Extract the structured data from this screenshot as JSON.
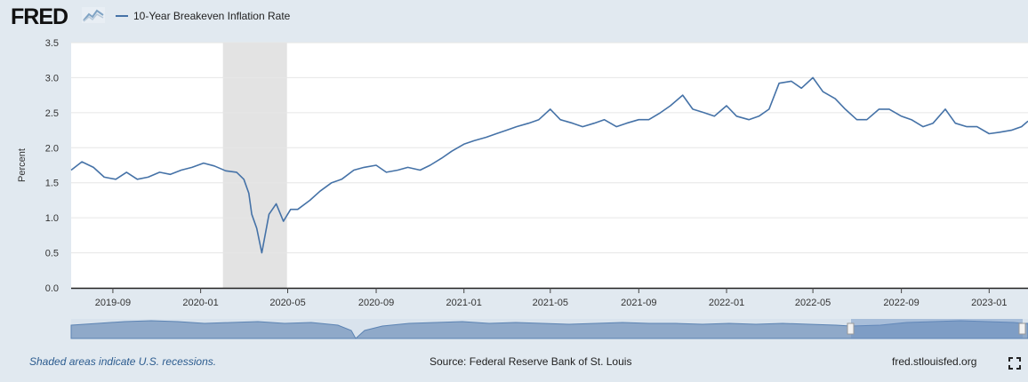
{
  "header": {
    "logo_text": "FRED",
    "series_label": "10-Year Breakeven Inflation Rate"
  },
  "footer": {
    "recession_note": "Shaded areas indicate U.S. recessions.",
    "source": "Source: Federal Reserve Bank of St. Louis",
    "site": "fred.stlouisfed.org"
  },
  "colors": {
    "line": "#4572a7",
    "plot_bg": "#ffffff",
    "page_bg": "#e1e9f0",
    "recession": "#e3e3e3",
    "grid": "#e6e6e6"
  },
  "chart_data": {
    "type": "line",
    "title": "",
    "xlabel": "",
    "ylabel": "Percent",
    "ylim": [
      0,
      3.5
    ],
    "yticks": [
      "0.0",
      "0.5",
      "1.0",
      "1.5",
      "2.0",
      "2.5",
      "3.0",
      "3.5"
    ],
    "xlim": [
      "2019-07-05",
      "2023-02-24"
    ],
    "xticks": [
      "2019-09",
      "2020-01",
      "2020-05",
      "2020-09",
      "2021-01",
      "2021-05",
      "2021-09",
      "2022-01",
      "2022-05",
      "2022-09",
      "2023-01"
    ],
    "grid": true,
    "legend": "top-left",
    "recession": [
      "2020-02-01",
      "2020-04-30"
    ],
    "series": [
      {
        "name": "10-Year Breakeven Inflation Rate",
        "x": [
          "2019-07-05",
          "2019-07-20",
          "2019-08-05",
          "2019-08-20",
          "2019-09-05",
          "2019-09-20",
          "2019-10-05",
          "2019-10-20",
          "2019-11-05",
          "2019-11-20",
          "2019-12-05",
          "2019-12-20",
          "2020-01-05",
          "2020-01-20",
          "2020-02-05",
          "2020-02-20",
          "2020-03-01",
          "2020-03-08",
          "2020-03-12",
          "2020-03-19",
          "2020-03-26",
          "2020-04-05",
          "2020-04-15",
          "2020-04-25",
          "2020-05-05",
          "2020-05-15",
          "2020-06-01",
          "2020-06-15",
          "2020-07-01",
          "2020-07-15",
          "2020-08-01",
          "2020-08-15",
          "2020-09-01",
          "2020-09-15",
          "2020-10-01",
          "2020-10-15",
          "2020-11-01",
          "2020-11-15",
          "2020-12-01",
          "2020-12-15",
          "2021-01-01",
          "2021-01-15",
          "2021-02-01",
          "2021-02-15",
          "2021-03-01",
          "2021-03-15",
          "2021-04-01",
          "2021-04-15",
          "2021-05-01",
          "2021-05-15",
          "2021-06-01",
          "2021-06-15",
          "2021-07-01",
          "2021-07-15",
          "2021-08-01",
          "2021-08-15",
          "2021-09-01",
          "2021-09-15",
          "2021-10-01",
          "2021-10-15",
          "2021-11-01",
          "2021-11-15",
          "2021-12-01",
          "2021-12-15",
          "2022-01-01",
          "2022-01-15",
          "2022-02-01",
          "2022-02-15",
          "2022-03-01",
          "2022-03-15",
          "2022-04-01",
          "2022-04-15",
          "2022-05-01",
          "2022-05-15",
          "2022-06-01",
          "2022-06-15",
          "2022-07-01",
          "2022-07-15",
          "2022-08-01",
          "2022-08-15",
          "2022-09-01",
          "2022-09-15",
          "2022-10-01",
          "2022-10-15",
          "2022-11-01",
          "2022-11-15",
          "2022-12-01",
          "2022-12-15",
          "2023-01-01",
          "2023-01-15",
          "2023-02-01",
          "2023-02-15",
          "2023-02-24"
        ],
        "values": [
          1.68,
          1.8,
          1.72,
          1.58,
          1.55,
          1.65,
          1.55,
          1.58,
          1.65,
          1.62,
          1.68,
          1.72,
          1.78,
          1.74,
          1.67,
          1.65,
          1.55,
          1.35,
          1.05,
          0.85,
          0.5,
          1.05,
          1.2,
          0.95,
          1.12,
          1.12,
          1.25,
          1.38,
          1.5,
          1.55,
          1.68,
          1.72,
          1.75,
          1.65,
          1.68,
          1.72,
          1.68,
          1.75,
          1.85,
          1.95,
          2.05,
          2.1,
          2.15,
          2.2,
          2.25,
          2.3,
          2.35,
          2.4,
          2.55,
          2.4,
          2.35,
          2.3,
          2.35,
          2.4,
          2.3,
          2.35,
          2.4,
          2.4,
          2.5,
          2.6,
          2.75,
          2.55,
          2.5,
          2.45,
          2.6,
          2.45,
          2.4,
          2.45,
          2.55,
          2.92,
          2.95,
          2.85,
          3.0,
          2.8,
          2.7,
          2.55,
          2.4,
          2.4,
          2.55,
          2.55,
          2.45,
          2.4,
          2.3,
          2.35,
          2.55,
          2.35,
          2.3,
          2.3,
          2.2,
          2.22,
          2.25,
          2.3,
          2.38
        ]
      }
    ]
  }
}
